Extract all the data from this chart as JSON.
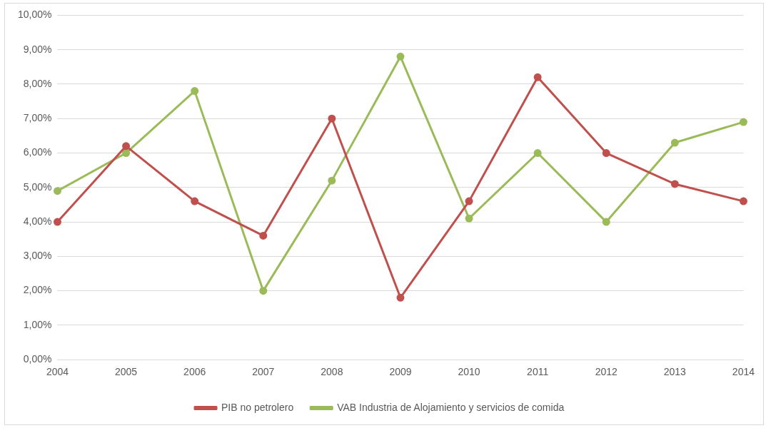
{
  "chart_data": {
    "type": "line",
    "categories": [
      "2004",
      "2005",
      "2006",
      "2007",
      "2008",
      "2009",
      "2010",
      "2011",
      "2012",
      "2013",
      "2014"
    ],
    "series": [
      {
        "name": "PIB no petrolero",
        "color": "#c0504d",
        "values": [
          4.0,
          6.2,
          4.6,
          3.6,
          7.0,
          1.8,
          4.6,
          8.2,
          6.0,
          5.1,
          4.6
        ]
      },
      {
        "name": "VAB Industria de Alojamiento y servicios de comida",
        "color": "#9bbb59",
        "values": [
          4.9,
          6.0,
          7.8,
          2.0,
          5.2,
          8.8,
          4.1,
          6.0,
          4.0,
          6.3,
          6.9
        ]
      }
    ],
    "ylim": [
      0,
      10
    ],
    "yticks": [
      {
        "value": 0,
        "label": "0,00%"
      },
      {
        "value": 1,
        "label": "1,00%"
      },
      {
        "value": 2,
        "label": "2,00%"
      },
      {
        "value": 3,
        "label": "3,00%"
      },
      {
        "value": 4,
        "label": "4,00%"
      },
      {
        "value": 5,
        "label": "5,00%"
      },
      {
        "value": 6,
        "label": "6,00%"
      },
      {
        "value": 7,
        "label": "7,00%"
      },
      {
        "value": 8,
        "label": "8,00%"
      },
      {
        "value": 9,
        "label": "9,00%"
      },
      {
        "value": 10,
        "label": "10,00%"
      }
    ],
    "grid": "y",
    "legend": "bottom",
    "marker": "circle",
    "line_style": "solid"
  }
}
